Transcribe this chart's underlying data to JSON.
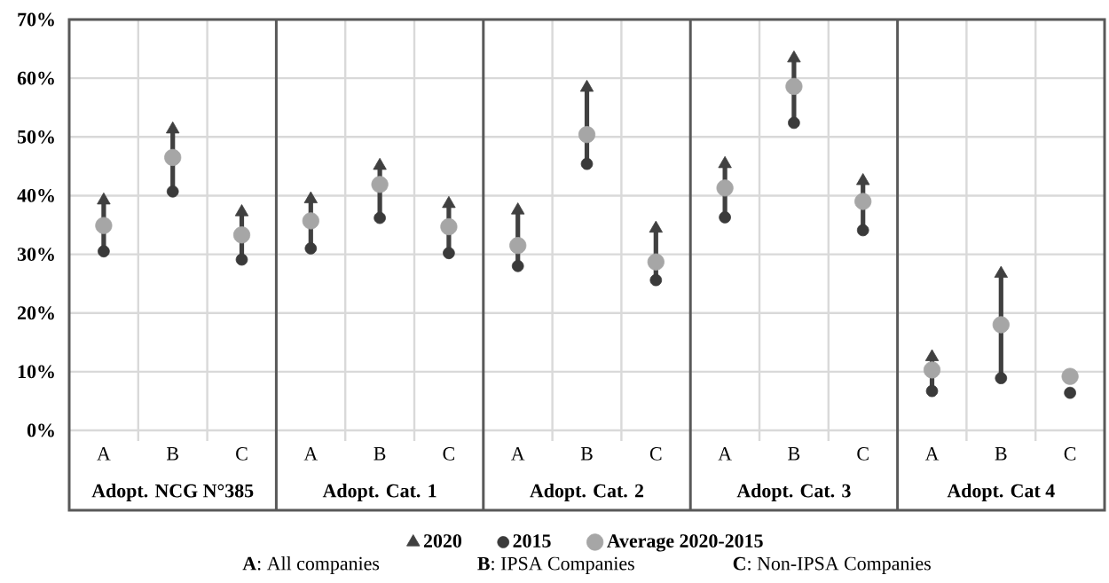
{
  "chart_data": {
    "type": "scatter",
    "categories": [
      "A",
      "B",
      "C",
      "A",
      "B",
      "C",
      "A",
      "B",
      "C",
      "A",
      "B",
      "C",
      "A",
      "B",
      "C"
    ],
    "series": [
      {
        "name": "2020",
        "color": "#404040",
        "marker": "triangle",
        "values": [
          39.2,
          51.3,
          37.2,
          39.4,
          45.1,
          38.6,
          37.5,
          58.4,
          34.4,
          45.4,
          63.4,
          42.5,
          12.5,
          26.7,
          null
        ]
      },
      {
        "name": "2015",
        "color": "#3a3a3a",
        "marker": "circle",
        "values": [
          30.5,
          40.7,
          29.1,
          31.0,
          36.2,
          30.2,
          28.0,
          45.4,
          25.6,
          36.3,
          52.4,
          34.1,
          6.7,
          8.9,
          6.4
        ]
      },
      {
        "name": "Average 2020-2015",
        "color": "#a6a6a6",
        "marker": "circle",
        "values": [
          34.9,
          46.5,
          33.3,
          35.7,
          41.9,
          34.7,
          31.5,
          50.4,
          28.7,
          41.3,
          58.6,
          39.0,
          10.3,
          18.0,
          9.2
        ]
      }
    ],
    "ylim": [
      0,
      70
    ],
    "yticks": [
      {
        "value": 0,
        "label": "0%"
      },
      {
        "value": 10,
        "label": "10%"
      },
      {
        "value": 20,
        "label": "20%"
      },
      {
        "value": 30,
        "label": "30%"
      },
      {
        "value": 40,
        "label": "40%"
      },
      {
        "value": 50,
        "label": "50%"
      },
      {
        "value": 60,
        "label": "60%"
      },
      {
        "value": 70,
        "label": "70%"
      }
    ],
    "grid": true,
    "legend": "bottom",
    "annotations": [
      "Adopt. NCG N°385",
      "Adopt. Cat. 1",
      "Adopt. Cat. 2",
      "Adopt. Cat. 3",
      "Adopt. Cat 4",
      "**A**: All companies",
      "**B**: IPSA Companies",
      "**C**: Non-IPSA Companies"
    ]
  }
}
